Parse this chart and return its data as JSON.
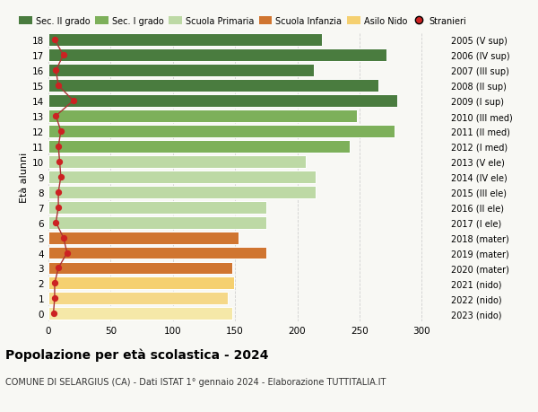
{
  "ages": [
    18,
    17,
    16,
    15,
    14,
    13,
    12,
    11,
    10,
    9,
    8,
    7,
    6,
    5,
    4,
    3,
    2,
    1,
    0
  ],
  "values": [
    220,
    272,
    213,
    265,
    280,
    248,
    278,
    242,
    207,
    215,
    215,
    175,
    175,
    153,
    175,
    148,
    149,
    144,
    148
  ],
  "stranieri": [
    5,
    12,
    6,
    8,
    20,
    6,
    10,
    8,
    9,
    10,
    8,
    8,
    6,
    12,
    15,
    8,
    5,
    5,
    4
  ],
  "right_labels": [
    "2005 (V sup)",
    "2006 (IV sup)",
    "2007 (III sup)",
    "2008 (II sup)",
    "2009 (I sup)",
    "2010 (III med)",
    "2011 (II med)",
    "2012 (I med)",
    "2013 (V ele)",
    "2014 (IV ele)",
    "2015 (III ele)",
    "2016 (II ele)",
    "2017 (I ele)",
    "2018 (mater)",
    "2019 (mater)",
    "2020 (mater)",
    "2021 (nido)",
    "2022 (nido)",
    "2023 (nido)"
  ],
  "colors": [
    "#4a7c3f",
    "#4a7c3f",
    "#4a7c3f",
    "#4a7c3f",
    "#4a7c3f",
    "#7db05a",
    "#7db05a",
    "#7db05a",
    "#bdd9a5",
    "#bdd9a5",
    "#bdd9a5",
    "#bdd9a5",
    "#bdd9a5",
    "#d07530",
    "#d07530",
    "#d07530",
    "#f5d070",
    "#f5d888",
    "#f5e8a8"
  ],
  "legend_labels": [
    "Sec. II grado",
    "Sec. I grado",
    "Scuola Primaria",
    "Scuola Infanzia",
    "Asilo Nido",
    "Stranieri"
  ],
  "legend_colors": [
    "#4a7c3f",
    "#7db05a",
    "#bdd9a5",
    "#d07530",
    "#f5d070",
    "#cc2222"
  ],
  "title": "Popolazione per età scolastica - 2024",
  "subtitle": "COMUNE DI SELARGIUS (CA) - Dati ISTAT 1° gennaio 2024 - Elaborazione TUTTITALIA.IT",
  "ylabel_left": "Età alunni",
  "bg_color": "#f8f8f4",
  "stranieri_color": "#cc2222",
  "line_color": "#aa3333",
  "bar_edgecolor": "white",
  "grid_color": "#cccccc",
  "xlim": [
    0,
    320
  ],
  "xticks": [
    0,
    50,
    100,
    150,
    200,
    250,
    300
  ]
}
